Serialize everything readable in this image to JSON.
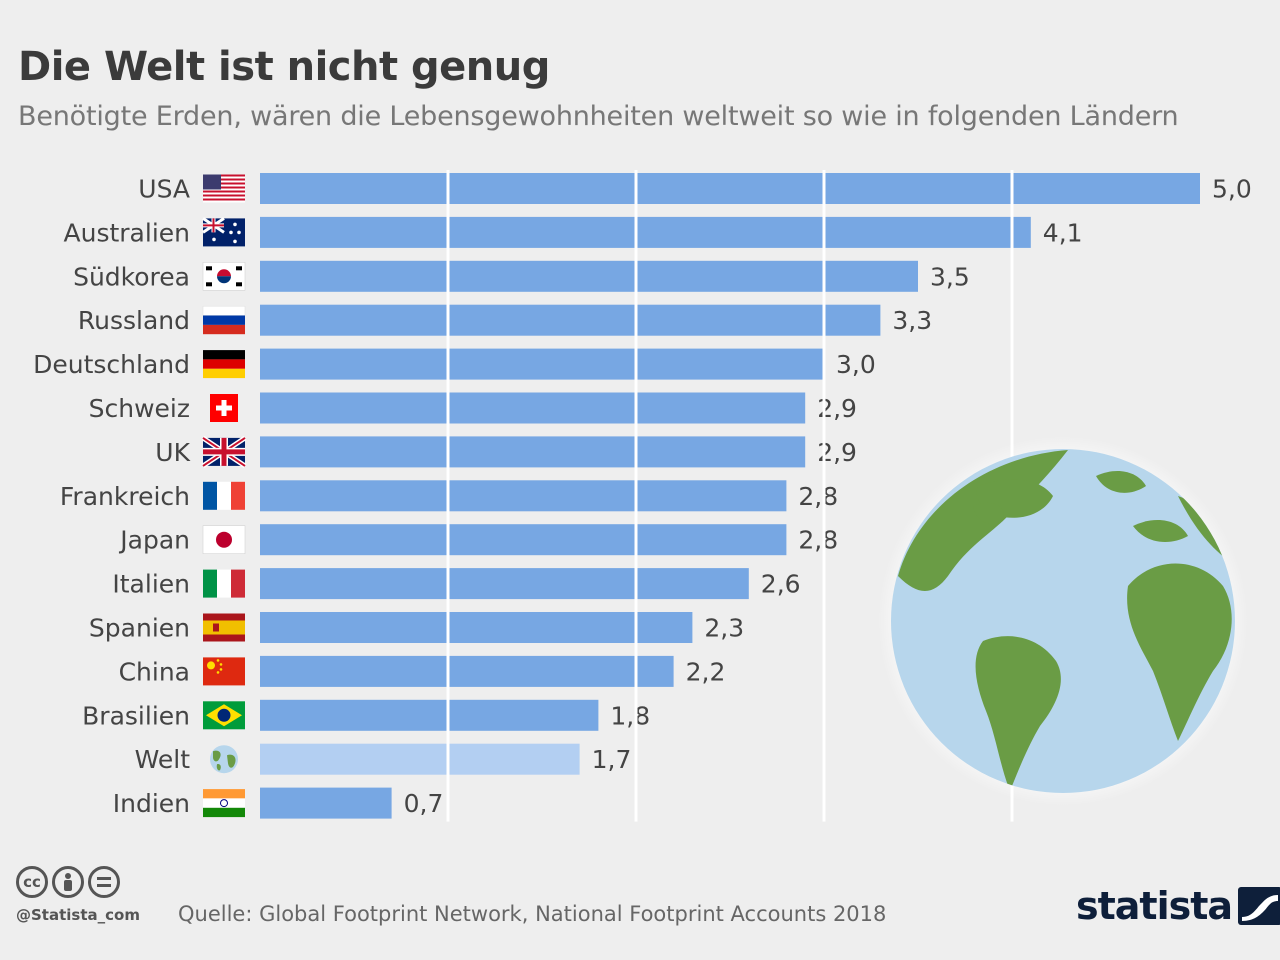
{
  "chart_data": {
    "type": "bar",
    "orientation": "horizontal",
    "title": "Die Welt ist nicht genug",
    "subtitle": "Benötigte Erden, wären die Lebensgewohnheiten weltweit so wie in folgenden Ländern",
    "categories": [
      "USA",
      "Australien",
      "Südkorea",
      "Russland",
      "Deutschland",
      "Schweiz",
      "UK",
      "Frankreich",
      "Japan",
      "Italien",
      "Spanien",
      "China",
      "Brasilien",
      "Welt",
      "Indien"
    ],
    "values": [
      5.0,
      4.1,
      3.5,
      3.3,
      3.0,
      2.9,
      2.9,
      2.8,
      2.8,
      2.6,
      2.3,
      2.2,
      1.8,
      1.7,
      0.7
    ],
    "value_labels": [
      "5,0",
      "4,1",
      "3,5",
      "3,3",
      "3,0",
      "2,9",
      "2,9",
      "2,8",
      "2,8",
      "2,6",
      "2,3",
      "2,2",
      "1,8",
      "1,7",
      "0,7"
    ],
    "flags": [
      "flag-usa-icon",
      "flag-australia-icon",
      "flag-south-korea-icon",
      "flag-russia-icon",
      "flag-germany-icon",
      "flag-switzerland-icon",
      "flag-uk-icon",
      "flag-france-icon",
      "flag-japan-icon",
      "flag-italy-icon",
      "flag-spain-icon",
      "flag-china-icon",
      "flag-brazil-icon",
      "globe-icon",
      "flag-india-icon"
    ],
    "highlight_category": "Welt",
    "xlim": [
      0,
      5
    ],
    "grid": true,
    "colors": {
      "bar": "#77a7e3",
      "bar_highlight": "#b3cff2",
      "grid": "#ffffff"
    }
  },
  "footer": {
    "handle": "@Statista_com",
    "source": "Quelle: Global Footprint Network, National Footprint Accounts 2018",
    "brand": "statista",
    "license_icons": [
      "cc",
      "by",
      "nd"
    ]
  }
}
